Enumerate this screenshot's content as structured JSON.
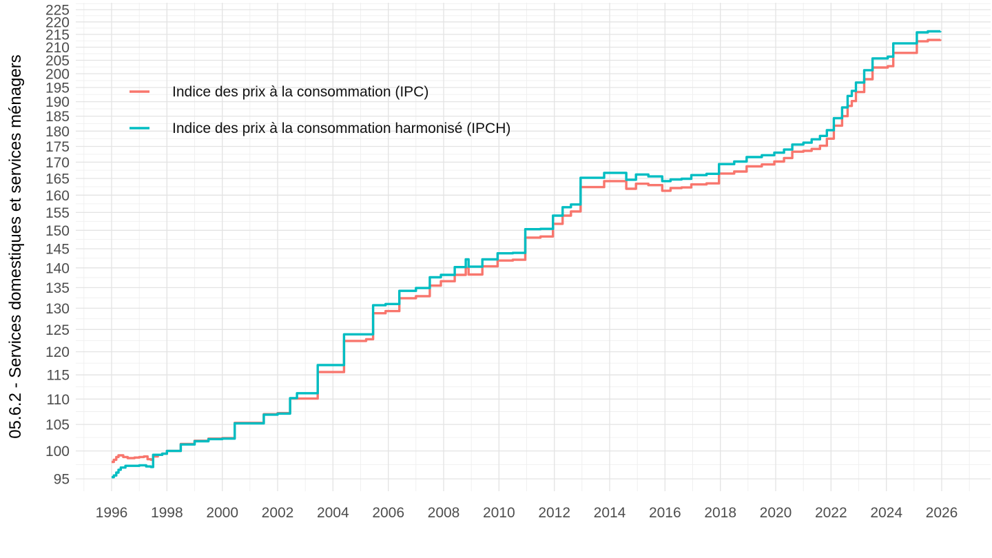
{
  "chart_data": {
    "type": "line",
    "subtype": "step-after",
    "title": "",
    "xlabel": "",
    "ylabel": "05.6.2 - Services domestiques et services ménagers",
    "y_scale": "log10",
    "x_ticks": [
      1996,
      1998,
      2000,
      2002,
      2004,
      2006,
      2008,
      2010,
      2012,
      2014,
      2016,
      2018,
      2020,
      2022,
      2024,
      2026
    ],
    "y_ticks": [
      95,
      100,
      105,
      110,
      115,
      120,
      125,
      130,
      135,
      140,
      145,
      150,
      155,
      160,
      165,
      170,
      175,
      180,
      185,
      190,
      195,
      200,
      205,
      210,
      215,
      220,
      225
    ],
    "x_range": [
      1994.7,
      2027.8
    ],
    "y_range_labels": [
      95,
      225
    ],
    "x_data_end": 2025.95,
    "grid": "major-and-minor",
    "legend_position": "inside-top-left",
    "colors": {
      "ipc": "#F8766D",
      "ipch": "#00BDC2",
      "grid_major": "#e3e3e3",
      "grid_minor": "#efefef",
      "tick_text": "#4d4d4d",
      "background": "#ffffff"
    },
    "series": [
      {
        "name": "Indice des prix à la consommation (IPC)",
        "color": "#F8766D",
        "points": [
          [
            1996.0,
            98.0
          ],
          [
            1996.08,
            98.4
          ],
          [
            1996.17,
            98.9
          ],
          [
            1996.25,
            99.2
          ],
          [
            1996.42,
            98.9
          ],
          [
            1996.58,
            98.7
          ],
          [
            1996.83,
            98.8
          ],
          [
            1997.0,
            98.9
          ],
          [
            1997.17,
            99.0
          ],
          [
            1997.3,
            98.5
          ],
          [
            1997.42,
            98.4
          ],
          [
            1997.5,
            99.0
          ],
          [
            1997.67,
            99.3
          ],
          [
            1997.83,
            99.5
          ],
          [
            1998.0,
            100.0
          ],
          [
            1998.5,
            101.3
          ],
          [
            1999.0,
            101.9
          ],
          [
            1999.5,
            102.3
          ],
          [
            2000.0,
            102.4
          ],
          [
            2000.45,
            105.3
          ],
          [
            2001.5,
            107.0
          ],
          [
            2002.0,
            107.2
          ],
          [
            2002.45,
            110.1
          ],
          [
            2003.45,
            115.6
          ],
          [
            2004.4,
            122.4
          ],
          [
            2005.2,
            122.8
          ],
          [
            2005.45,
            128.8
          ],
          [
            2005.9,
            129.3
          ],
          [
            2006.4,
            132.4
          ],
          [
            2007.0,
            132.9
          ],
          [
            2007.5,
            135.5
          ],
          [
            2007.9,
            136.6
          ],
          [
            2008.4,
            138.2
          ],
          [
            2008.8,
            140.0
          ],
          [
            2008.9,
            138.3
          ],
          [
            2009.4,
            140.4
          ],
          [
            2009.95,
            141.9
          ],
          [
            2010.5,
            142.1
          ],
          [
            2010.95,
            148.0
          ],
          [
            2011.5,
            148.3
          ],
          [
            2011.95,
            151.8
          ],
          [
            2012.3,
            154.1
          ],
          [
            2012.6,
            155.3
          ],
          [
            2012.95,
            162.4
          ],
          [
            2013.8,
            164.2
          ],
          [
            2014.6,
            161.9
          ],
          [
            2014.95,
            163.4
          ],
          [
            2015.4,
            163.0
          ],
          [
            2015.9,
            161.3
          ],
          [
            2016.2,
            162.1
          ],
          [
            2016.6,
            162.3
          ],
          [
            2016.95,
            163.2
          ],
          [
            2017.5,
            163.5
          ],
          [
            2017.95,
            166.5
          ],
          [
            2018.5,
            167.1
          ],
          [
            2018.95,
            168.7
          ],
          [
            2019.5,
            169.3
          ],
          [
            2019.95,
            170.2
          ],
          [
            2020.3,
            171.3
          ],
          [
            2020.6,
            173.3
          ],
          [
            2021.0,
            173.6
          ],
          [
            2021.3,
            174.2
          ],
          [
            2021.6,
            175.2
          ],
          [
            2021.85,
            177.5
          ],
          [
            2022.1,
            181.8
          ],
          [
            2022.4,
            185.0
          ],
          [
            2022.6,
            188.5
          ],
          [
            2022.75,
            190.2
          ],
          [
            2022.9,
            193.4
          ],
          [
            2023.2,
            198.0
          ],
          [
            2023.5,
            202.3
          ],
          [
            2024.05,
            202.8
          ],
          [
            2024.25,
            207.8
          ],
          [
            2025.1,
            212.3
          ],
          [
            2025.5,
            212.8
          ],
          [
            2025.95,
            213.0
          ]
        ]
      },
      {
        "name": "Indice des prix à la consommation harmonisé (IPCH)",
        "color": "#00BDC2",
        "points": [
          [
            1996.0,
            95.3
          ],
          [
            1996.08,
            95.6
          ],
          [
            1996.17,
            96.1
          ],
          [
            1996.25,
            96.6
          ],
          [
            1996.33,
            97.0
          ],
          [
            1996.5,
            97.3
          ],
          [
            1997.0,
            97.4
          ],
          [
            1997.25,
            97.2
          ],
          [
            1997.42,
            97.1
          ],
          [
            1997.5,
            99.3
          ],
          [
            1997.83,
            99.5
          ],
          [
            1998.0,
            100.0
          ],
          [
            1998.5,
            101.2
          ],
          [
            1999.0,
            101.8
          ],
          [
            1999.5,
            102.2
          ],
          [
            2000.0,
            102.3
          ],
          [
            2000.45,
            105.2
          ],
          [
            2001.5,
            106.9
          ],
          [
            2002.0,
            107.1
          ],
          [
            2002.45,
            110.2
          ],
          [
            2002.7,
            111.2
          ],
          [
            2003.45,
            117.1
          ],
          [
            2004.4,
            123.9
          ],
          [
            2005.45,
            130.7
          ],
          [
            2005.9,
            131.0
          ],
          [
            2006.4,
            134.2
          ],
          [
            2007.0,
            134.9
          ],
          [
            2007.5,
            137.6
          ],
          [
            2007.9,
            138.2
          ],
          [
            2008.4,
            140.2
          ],
          [
            2008.8,
            142.2
          ],
          [
            2008.9,
            140.3
          ],
          [
            2009.4,
            142.2
          ],
          [
            2009.95,
            143.8
          ],
          [
            2010.5,
            143.9
          ],
          [
            2010.95,
            150.3
          ],
          [
            2011.5,
            150.4
          ],
          [
            2011.95,
            154.1
          ],
          [
            2012.3,
            156.5
          ],
          [
            2012.6,
            157.3
          ],
          [
            2012.95,
            165.2
          ],
          [
            2013.8,
            166.7
          ],
          [
            2014.6,
            164.6
          ],
          [
            2014.95,
            166.2
          ],
          [
            2015.4,
            165.6
          ],
          [
            2015.9,
            164.2
          ],
          [
            2016.2,
            164.7
          ],
          [
            2016.6,
            164.9
          ],
          [
            2016.95,
            166.0
          ],
          [
            2017.5,
            166.4
          ],
          [
            2017.95,
            169.4
          ],
          [
            2018.5,
            170.2
          ],
          [
            2018.95,
            171.6
          ],
          [
            2019.5,
            172.2
          ],
          [
            2019.95,
            173.0
          ],
          [
            2020.3,
            174.0
          ],
          [
            2020.6,
            175.6
          ],
          [
            2021.0,
            176.2
          ],
          [
            2021.3,
            177.3
          ],
          [
            2021.6,
            178.4
          ],
          [
            2021.85,
            180.3
          ],
          [
            2022.1,
            184.3
          ],
          [
            2022.4,
            188.0
          ],
          [
            2022.6,
            192.0
          ],
          [
            2022.75,
            193.8
          ],
          [
            2022.9,
            196.8
          ],
          [
            2023.2,
            201.3
          ],
          [
            2023.5,
            205.7
          ],
          [
            2024.05,
            206.4
          ],
          [
            2024.25,
            211.5
          ],
          [
            2025.1,
            215.8
          ],
          [
            2025.5,
            216.2
          ],
          [
            2025.95,
            216.3
          ]
        ]
      }
    ]
  }
}
